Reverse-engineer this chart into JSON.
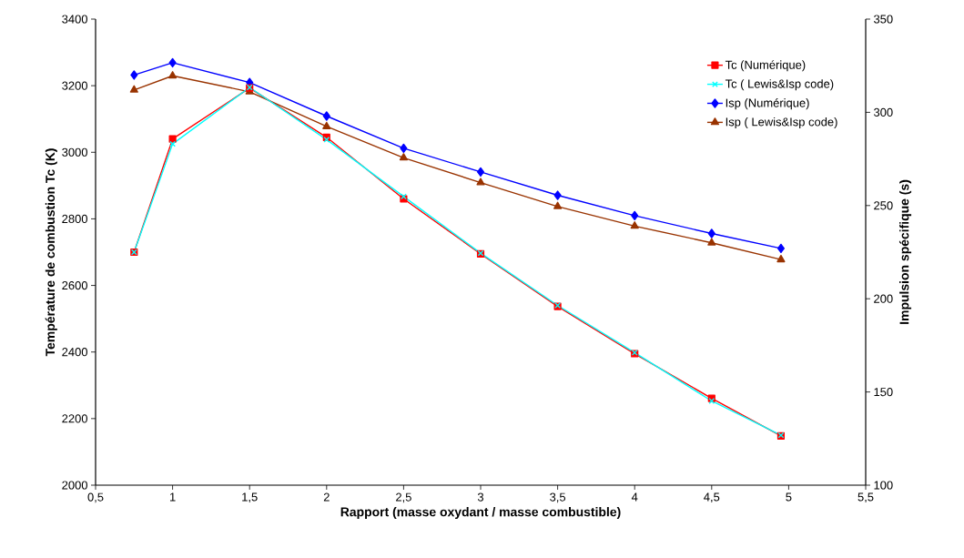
{
  "chart_data": {
    "type": "line",
    "xlabel": "Rapport (masse oxydant / masse combustible)",
    "ylabel": "Température de combustion Tc (K)",
    "y2label": "Impulsion spécifique (s)",
    "x": [
      0.75,
      1,
      1.5,
      2,
      2.5,
      3,
      3.5,
      4,
      4.5,
      4.95
    ],
    "series": [
      {
        "name": "Tc (Numérique)",
        "color": "#ff0000",
        "marker": "square",
        "values": [
          2700,
          3040,
          3193,
          3045,
          2860,
          2695,
          2537,
          2395,
          2261,
          2148
        ]
      },
      {
        "name": "Tc ( Lewis&Isp code)",
        "color": "#00ffff",
        "marker": "cross",
        "values": [
          2700,
          3025,
          3195,
          3038,
          2867,
          2697,
          2540,
          2398,
          2253,
          2150
        ]
      },
      {
        "name": "Isp  (Numérique)",
        "color": "#0000ff",
        "marker": "diamond",
        "axis": "y2",
        "values": [
          320,
          326.6,
          316,
          298,
          280.7,
          268,
          255.5,
          244.6,
          235,
          227
        ]
      },
      {
        "name": "Isp ( Lewis&Isp code)",
        "color": "#993300",
        "marker": "triangle",
        "axis": "y2",
        "values": [
          312,
          319.6,
          311,
          292.4,
          275.6,
          262.3,
          249.5,
          239,
          230,
          221
        ]
      }
    ],
    "xlim": [
      0.5,
      5.5
    ],
    "xticks": [
      {
        "value": 0.5,
        "label": "0,5"
      },
      1,
      {
        "value": 1.5,
        "label": "1,5"
      },
      2,
      {
        "value": 2.5,
        "label": "2,5"
      },
      3,
      {
        "value": 3.5,
        "label": "3,5"
      },
      4,
      {
        "value": 4.5,
        "label": "4,5"
      },
      5,
      {
        "value": 5.5,
        "label": "5,5"
      }
    ],
    "ylim": [
      2000,
      3400
    ],
    "yticks": [
      2000,
      2200,
      2400,
      2600,
      2800,
      3000,
      3200,
      3400
    ],
    "y2lim": [
      100,
      350
    ],
    "y2ticks": [
      100,
      150,
      200,
      250,
      300,
      350
    ],
    "legend": "top right",
    "grid": false
  }
}
